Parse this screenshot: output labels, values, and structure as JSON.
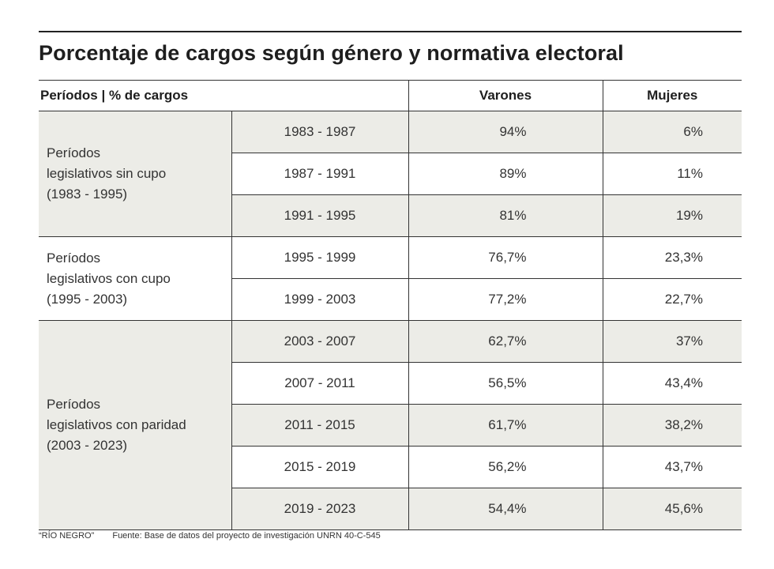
{
  "title": "Porcentaje de cargos según género y normativa electoral",
  "headers": {
    "periodos": "Períodos | % de cargos",
    "varones": "Varones",
    "mujeres": "Mujeres"
  },
  "groups": [
    {
      "label_lines": [
        "Períodos",
        "legislativos sin cupo",
        "(1983 - 1995)"
      ],
      "rows": [
        {
          "period": "1983 - 1987",
          "varones": "94%",
          "mujeres": "6%"
        },
        {
          "period": "1987 - 1991",
          "varones": "89%",
          "mujeres": "11%"
        },
        {
          "period": "1991 - 1995",
          "varones": "81%",
          "mujeres": "19%"
        }
      ]
    },
    {
      "label_lines": [
        "Períodos",
        "legislativos con cupo",
        "(1995 - 2003)"
      ],
      "rows": [
        {
          "period": "1995 - 1999",
          "varones": "76,7%",
          "mujeres": "23,3%"
        },
        {
          "period": "1999 - 2003",
          "varones": "77,2%",
          "mujeres": "22,7%"
        }
      ]
    },
    {
      "label_lines": [
        "Períodos",
        "legislativos con paridad",
        "(2003 - 2023)"
      ],
      "rows": [
        {
          "period": "2003 - 2007",
          "varones": "62,7%",
          "mujeres": "37%"
        },
        {
          "period": "2007 - 2011",
          "varones": "56,5%",
          "mujeres": "43,4%"
        },
        {
          "period": "2011 - 2015",
          "varones": "61,7%",
          "mujeres": "38,2%"
        },
        {
          "period": "2015 - 2019",
          "varones": "56,2%",
          "mujeres": "43,7%"
        },
        {
          "period": "2019 - 2023",
          "varones": "54,4%",
          "mujeres": "45,6%"
        }
      ]
    }
  ],
  "footer": {
    "credit": "“RÍO NEGRO”",
    "source": "Fuente: Base de datos del proyecto de investigación UNRN 40-C-545"
  },
  "colors": {
    "shade": "#ecece7",
    "rule": "#333333"
  }
}
